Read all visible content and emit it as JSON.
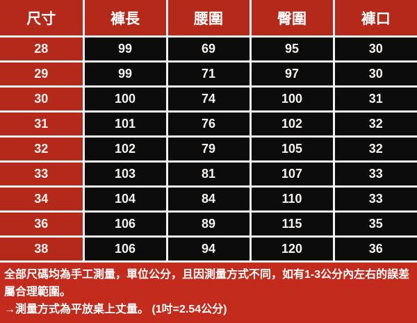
{
  "table": {
    "headers": [
      "尺寸",
      "褲長",
      "腰圍",
      "臀圍",
      "褲口"
    ],
    "rows": [
      [
        "28",
        "99",
        "69",
        "95",
        "30"
      ],
      [
        "29",
        "99",
        "71",
        "97",
        "30"
      ],
      [
        "30",
        "100",
        "74",
        "100",
        "31"
      ],
      [
        "31",
        "101",
        "76",
        "102",
        "32"
      ],
      [
        "32",
        "102",
        "79",
        "105",
        "32"
      ],
      [
        "33",
        "103",
        "81",
        "107",
        "33"
      ],
      [
        "34",
        "104",
        "84",
        "110",
        "33"
      ],
      [
        "36",
        "106",
        "89",
        "115",
        "35"
      ],
      [
        "38",
        "106",
        "94",
        "120",
        "36"
      ]
    ]
  },
  "footnote": {
    "note1": "全部尺碼均為手工測量，單位公分，且因測量方式不同，如有1-3公分內左右的誤差屬合理範圍。",
    "note2": "→測量方式為平放桌上丈量。 (1吋=2.54公分)"
  },
  "colors": {
    "table_red": "#b5291b",
    "footer_red": "#c32b1c",
    "cell_black": "#0c0c0c",
    "border_white": "#f3f3f3",
    "text_white": "#ffffff"
  }
}
